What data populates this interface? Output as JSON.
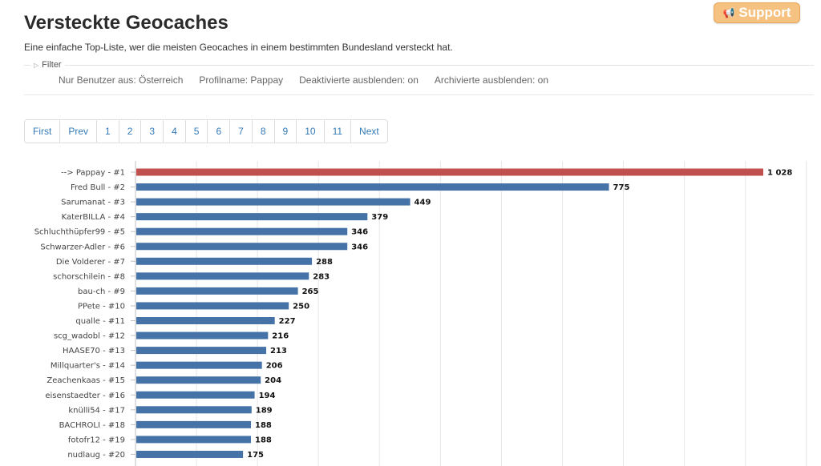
{
  "page": {
    "title": "Versteckte Geocaches",
    "subtitle": "Eine einfache Top-Liste, wer die meisten Geocaches in einem bestimmten Bundesland versteckt hat.",
    "support_label": "Support"
  },
  "filter": {
    "legend": "Filter",
    "values": [
      "Nur Benutzer aus: Österreich",
      "Profilname: Pappay",
      "Deaktivierte ausblenden: on",
      "Archivierte ausblenden: on"
    ]
  },
  "pagination": [
    "First",
    "Prev",
    "1",
    "2",
    "3",
    "4",
    "5",
    "6",
    "7",
    "8",
    "9",
    "10",
    "11",
    "Next"
  ],
  "colors": {
    "highlight": "#c0504d",
    "bar": "#4572a7",
    "support": "#f5c281"
  },
  "chart_data": {
    "type": "bar",
    "orientation": "horizontal",
    "categories": [
      "--> Pappay - #1",
      "Fred Bull - #2",
      "Sarumanat - #3",
      "KaterBILLA - #4",
      "Schluchthüpfer99 - #5",
      "Schwarzer-Adler - #6",
      "Die Volderer - #7",
      "schorschilein - #8",
      "bau-ch - #9",
      "PPete - #10",
      "qualle - #11",
      "scg_wadobl - #12",
      "HAASE70 - #13",
      "Millquarter's - #14",
      "Zeachenkaas - #15",
      "eisenstaedter - #16",
      "knülli54 - #17",
      "BACHROLI - #18",
      "fotofr12 - #19",
      "nudlaug - #20"
    ],
    "values": [
      1028,
      775,
      449,
      379,
      346,
      346,
      288,
      283,
      265,
      250,
      227,
      216,
      213,
      206,
      204,
      194,
      189,
      188,
      188,
      175
    ],
    "value_labels": [
      "1 028",
      "775",
      "449",
      "379",
      "346",
      "346",
      "288",
      "283",
      "265",
      "250",
      "227",
      "216",
      "213",
      "206",
      "204",
      "194",
      "189",
      "188",
      "188",
      "175"
    ],
    "highlight_index": 0,
    "xlim": [
      0,
      1100
    ],
    "grid": true
  }
}
